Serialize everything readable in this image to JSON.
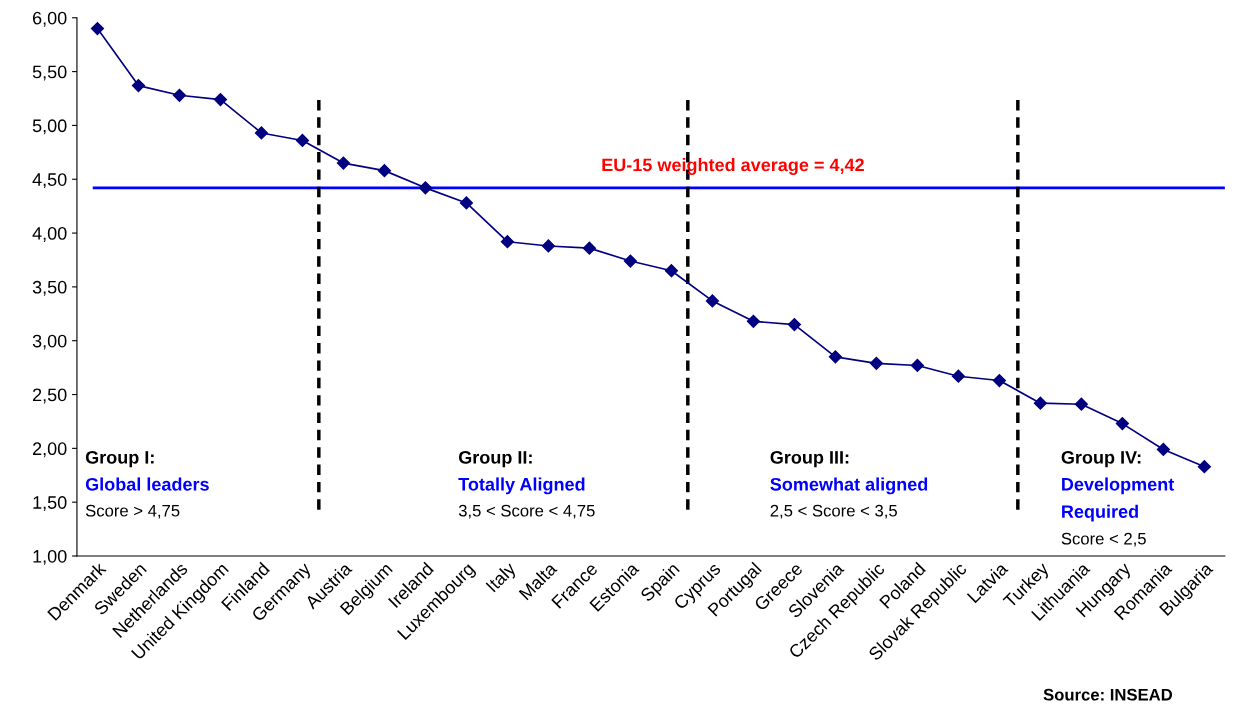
{
  "chart_data": {
    "type": "line",
    "categories": [
      "Denmark",
      "Sweden",
      "Netherlands",
      "United Kingdom",
      "Finland",
      "Germany",
      "Austria",
      "Belgium",
      "Ireland",
      "Luxembourg",
      "Italy",
      "Malta",
      "France",
      "Estonia",
      "Spain",
      "Cyprus",
      "Portugal",
      "Greece",
      "Slovenia",
      "Czech Republic",
      "Poland",
      "Slovak Republic",
      "Latvia",
      "Turkey",
      "Lithuania",
      "Hungary",
      "Romania",
      "Bulgaria"
    ],
    "series": [
      {
        "color": "#000080",
        "values": [
          5.9,
          5.37,
          5.28,
          5.24,
          4.93,
          4.86,
          4.65,
          4.58,
          4.42,
          4.28,
          3.92,
          3.88,
          3.86,
          3.74,
          3.65,
          3.37,
          3.18,
          3.15,
          2.85,
          2.79,
          2.77,
          2.67,
          2.63,
          2.42,
          2.41,
          2.23,
          1.99,
          1.83
        ]
      }
    ],
    "marker": "diamond",
    "line_style": "solid",
    "grid": false,
    "legend": false,
    "ylim": [
      1,
      6
    ],
    "yticks": [
      {
        "value": 1,
        "label": "1,00"
      },
      {
        "value": 1.5,
        "label": "1,50"
      },
      {
        "value": 2,
        "label": "2,00"
      },
      {
        "value": 2.5,
        "label": "2,50"
      },
      {
        "value": 3,
        "label": "3,00"
      },
      {
        "value": 3.5,
        "label": "3,50"
      },
      {
        "value": 4,
        "label": "4,00"
      },
      {
        "value": 4.5,
        "label": "4,50"
      },
      {
        "value": 5,
        "label": "5,00"
      },
      {
        "value": 5.5,
        "label": "5,50"
      },
      {
        "value": 6,
        "label": "6,00"
      }
    ],
    "ref_lines": [
      {
        "axis": "y",
        "value": 4.42,
        "label": "EU-15 weighted average = 4,42",
        "color": "#0000ff",
        "line_style": "solid"
      }
    ],
    "annotations": [
      [
        "Group I:",
        "Global leaders",
        "Score > 4,75"
      ],
      [
        "Group II:",
        "Totally Aligned",
        "3,5 < Score < 4,75"
      ],
      [
        "Group III:",
        "Somewhat aligned",
        "2,5 < Score < 3,5"
      ],
      [
        "Group IV:",
        "Development\nRequired",
        "Score < 2,5"
      ],
      "Source: INSEAD"
    ]
  }
}
